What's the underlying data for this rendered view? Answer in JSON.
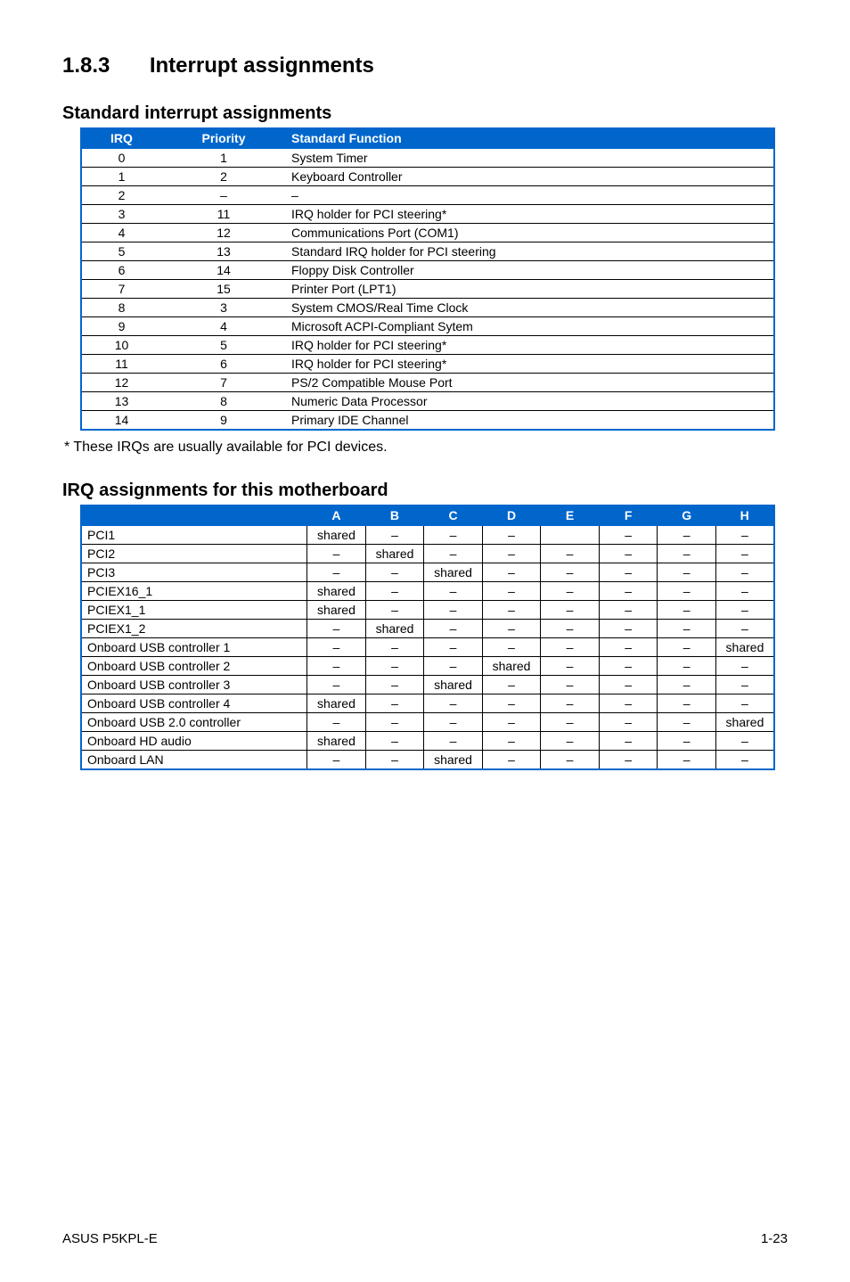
{
  "section": {
    "number": "1.8.3",
    "title": "Interrupt assignments"
  },
  "standard": {
    "heading": "Standard interrupt assignments",
    "headers": {
      "irq": "IRQ",
      "priority": "Priority",
      "func": "Standard Function"
    },
    "rows": [
      {
        "irq": "0",
        "priority": "1",
        "func": "System Timer"
      },
      {
        "irq": "1",
        "priority": "2",
        "func": "Keyboard Controller"
      },
      {
        "irq": "2",
        "priority": "–",
        "func": "–"
      },
      {
        "irq": "3",
        "priority": "11",
        "func": "IRQ holder for PCI steering*"
      },
      {
        "irq": "4",
        "priority": "12",
        "func": "Communications Port (COM1)"
      },
      {
        "irq": "5",
        "priority": "13",
        "func": "Standard IRQ holder for PCI steering"
      },
      {
        "irq": "6",
        "priority": "14",
        "func": "Floppy Disk Controller"
      },
      {
        "irq": "7",
        "priority": "15",
        "func": "Printer Port (LPT1)"
      },
      {
        "irq": "8",
        "priority": "3",
        "func": "System CMOS/Real Time Clock"
      },
      {
        "irq": "9",
        "priority": "4",
        "func": "Microsoft ACPI-Compliant Sytem"
      },
      {
        "irq": "10",
        "priority": "5",
        "func": "IRQ holder for PCI steering*"
      },
      {
        "irq": "11",
        "priority": "6",
        "func": "IRQ holder for PCI steering*"
      },
      {
        "irq": "12",
        "priority": "7",
        "func": "PS/2 Compatible Mouse Port"
      },
      {
        "irq": "13",
        "priority": "8",
        "func": "Numeric Data Processor"
      },
      {
        "irq": "14",
        "priority": "9",
        "func": "Primary IDE Channel"
      }
    ],
    "note": "* These IRQs are usually available for PCI devices."
  },
  "assign": {
    "heading": "IRQ assignments for this motherboard",
    "cols": [
      "A",
      "B",
      "C",
      "D",
      "E",
      "F",
      "G",
      "H"
    ],
    "rows": [
      {
        "label": "PCI1",
        "v": [
          "shared",
          "–",
          "–",
          "–",
          "",
          "–",
          "–",
          "–"
        ]
      },
      {
        "label": "PCI2",
        "v": [
          "–",
          "shared",
          "–",
          "–",
          "–",
          "–",
          "–",
          "–"
        ]
      },
      {
        "label": "PCI3",
        "v": [
          "–",
          "–",
          "shared",
          "–",
          "–",
          "–",
          "–",
          "–"
        ]
      },
      {
        "label": "PCIEX16_1",
        "v": [
          "shared",
          "–",
          "–",
          "–",
          "–",
          "–",
          "–",
          "–"
        ]
      },
      {
        "label": "PCIEX1_1",
        "v": [
          "shared",
          "–",
          "–",
          "–",
          "–",
          "–",
          "–",
          "–"
        ]
      },
      {
        "label": "PCIEX1_2",
        "v": [
          "–",
          "shared",
          "–",
          "–",
          "–",
          "–",
          "–",
          "–"
        ]
      },
      {
        "label": "Onboard USB controller 1",
        "v": [
          "–",
          "–",
          "–",
          "–",
          "–",
          "–",
          "–",
          "shared"
        ]
      },
      {
        "label": "Onboard USB controller 2",
        "v": [
          "–",
          "–",
          "–",
          "shared",
          "–",
          "–",
          "–",
          "–"
        ]
      },
      {
        "label": "Onboard USB controller 3",
        "v": [
          "–",
          "–",
          "shared",
          "–",
          "–",
          "–",
          "–",
          "–"
        ]
      },
      {
        "label": "Onboard USB controller 4",
        "v": [
          "shared",
          "–",
          "–",
          "–",
          "–",
          "–",
          "–",
          "–"
        ]
      },
      {
        "label": "Onboard USB 2.0 controller",
        "v": [
          "–",
          "–",
          "–",
          "–",
          "–",
          "–",
          "–",
          "shared"
        ]
      },
      {
        "label": "Onboard HD audio",
        "v": [
          "shared",
          "–",
          "–",
          "–",
          "–",
          "–",
          "–",
          "–"
        ]
      },
      {
        "label": "Onboard LAN",
        "v": [
          "–",
          "–",
          "shared",
          "–",
          "–",
          "–",
          "–",
          "–"
        ]
      }
    ]
  },
  "footer": {
    "left": "ASUS P5KPL-E",
    "right": "1-23"
  }
}
